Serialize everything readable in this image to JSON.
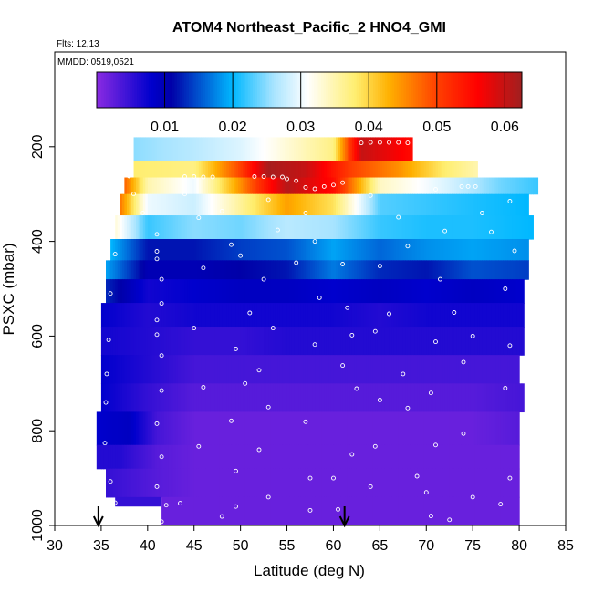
{
  "chart_data": {
    "type": "heatmap",
    "title": "ATOM4 Northeast_Pacific_2 HNO4_GMI",
    "flights_label": "Flts: 12,13",
    "date_label": "MMDD: 0519,0521",
    "xlabel": "Latitude (deg N)",
    "ylabel": "PSXC (mbar)",
    "xlim": [
      30,
      85
    ],
    "ylim": [
      1000,
      0
    ],
    "x_ticks": [
      "30",
      "35",
      "40",
      "45",
      "50",
      "55",
      "60",
      "65",
      "70",
      "75",
      "80",
      "85"
    ],
    "x_tick_values": [
      30,
      35,
      40,
      45,
      50,
      55,
      60,
      65,
      70,
      75,
      80,
      85
    ],
    "y_ticks": [
      "200",
      "400",
      "600",
      "800",
      "1000"
    ],
    "y_tick_values": [
      200,
      400,
      600,
      800,
      1000
    ],
    "colorbar": {
      "range": [
        0,
        0.0625
      ],
      "tick_labels": [
        "0.01",
        "0.02",
        "0.03",
        "0.04",
        "0.05",
        "0.06"
      ],
      "tick_values": [
        0.01,
        0.02,
        0.03,
        0.04,
        0.05,
        0.06
      ]
    },
    "arrows_latitude": [
      34.7,
      61.2
    ],
    "bands": [
      {
        "p_top": 180,
        "p_bottom": 230,
        "x_start": 38.5,
        "x_end": 68.5,
        "lats": [
          38.5,
          45,
          50,
          55,
          60,
          63,
          68.5
        ],
        "values": [
          0.025,
          0.027,
          0.029,
          0.033,
          0.037,
          0.06,
          0.055
        ]
      },
      {
        "p_top": 230,
        "p_bottom": 265,
        "x_start": 38.5,
        "x_end": 75.5,
        "lats": [
          38.5,
          45,
          50,
          53,
          57,
          62,
          67,
          72,
          75.5
        ],
        "values": [
          0.038,
          0.037,
          0.05,
          0.062,
          0.06,
          0.05,
          0.045,
          0.038,
          0.035
        ]
      },
      {
        "p_top": 265,
        "p_bottom": 300,
        "x_start": 37.5,
        "x_end": 82,
        "lats": [
          37.5,
          40,
          45,
          50,
          55,
          60,
          65,
          72,
          78,
          82
        ],
        "values": [
          0.048,
          0.035,
          0.03,
          0.045,
          0.061,
          0.055,
          0.034,
          0.029,
          0.024,
          0.022
        ]
      },
      {
        "p_top": 300,
        "p_bottom": 345,
        "x_start": 37,
        "x_end": 81,
        "lats": [
          37,
          40,
          45,
          50,
          55,
          60,
          65,
          70,
          75,
          81
        ],
        "values": [
          0.047,
          0.03,
          0.028,
          0.036,
          0.044,
          0.039,
          0.023,
          0.022,
          0.021,
          0.02
        ]
      },
      {
        "p_top": 345,
        "p_bottom": 395,
        "x_start": 36.5,
        "x_end": 81.5,
        "lats": [
          36.5,
          40,
          45,
          50,
          55,
          60,
          65,
          70,
          75,
          81.5
        ],
        "values": [
          0.033,
          0.022,
          0.025,
          0.024,
          0.027,
          0.026,
          0.022,
          0.021,
          0.021,
          0.02
        ]
      },
      {
        "p_top": 395,
        "p_bottom": 440,
        "x_start": 36,
        "x_end": 81,
        "lats": [
          36,
          40,
          45,
          50,
          55,
          60,
          65,
          70,
          75,
          81
        ],
        "values": [
          0.02,
          0.012,
          0.012,
          0.014,
          0.015,
          0.019,
          0.016,
          0.018,
          0.019,
          0.018
        ]
      },
      {
        "p_top": 440,
        "p_bottom": 480,
        "x_start": 35.5,
        "x_end": 81,
        "lats": [
          35.5,
          40,
          45,
          50,
          55,
          60,
          65,
          70,
          75,
          81
        ],
        "values": [
          0.019,
          0.01,
          0.01,
          0.011,
          0.012,
          0.017,
          0.013,
          0.012,
          0.015,
          0.014
        ]
      },
      {
        "p_top": 480,
        "p_bottom": 530,
        "x_start": 35.5,
        "x_end": 80.5,
        "lats": [
          35.5,
          40,
          45,
          50,
          55,
          60,
          65,
          70,
          75,
          80.5
        ],
        "values": [
          0.013,
          0.007,
          0.008,
          0.009,
          0.009,
          0.008,
          0.009,
          0.008,
          0.009,
          0.008
        ]
      },
      {
        "p_top": 530,
        "p_bottom": 580,
        "x_start": 35,
        "x_end": 80.5,
        "lats": [
          35,
          40,
          45,
          50,
          55,
          60,
          65,
          70,
          75,
          80.5
        ],
        "values": [
          0.008,
          0.006,
          0.007,
          0.007,
          0.007,
          0.007,
          0.006,
          0.007,
          0.007,
          0.007
        ]
      },
      {
        "p_top": 580,
        "p_bottom": 640,
        "x_start": 35,
        "x_end": 80.5,
        "lats": [
          35,
          40,
          45,
          50,
          55,
          60,
          65,
          70,
          75,
          80.5
        ],
        "values": [
          0.007,
          0.006,
          0.005,
          0.005,
          0.006,
          0.006,
          0.006,
          0.006,
          0.006,
          0.006
        ]
      },
      {
        "p_top": 640,
        "p_bottom": 700,
        "x_start": 35,
        "x_end": 80,
        "lats": [
          35,
          40,
          45,
          50,
          55,
          60,
          65,
          70,
          75,
          80
        ],
        "values": [
          0.008,
          0.006,
          0.004,
          0.004,
          0.004,
          0.004,
          0.004,
          0.004,
          0.004,
          0.004
        ]
      },
      {
        "p_top": 700,
        "p_bottom": 760,
        "x_start": 35,
        "x_end": 80.5,
        "lats": [
          35,
          40,
          45,
          50,
          55,
          60,
          65,
          70,
          75,
          80.5
        ],
        "values": [
          0.008,
          0.005,
          0.003,
          0.003,
          0.003,
          0.003,
          0.003,
          0.003,
          0.003,
          0.004
        ]
      },
      {
        "p_top": 760,
        "p_bottom": 830,
        "x_start": 34.5,
        "x_end": 80,
        "lats": [
          34.5,
          38,
          41,
          45,
          50,
          55,
          60,
          65,
          70,
          75,
          80
        ],
        "values": [
          0.008,
          0.009,
          0.004,
          0.002,
          0.002,
          0.002,
          0.002,
          0.002,
          0.002,
          0.002,
          0.003
        ]
      },
      {
        "p_top": 830,
        "p_bottom": 880,
        "x_start": 34.5,
        "x_end": 80,
        "lats": [
          34.5,
          37,
          41,
          45,
          50,
          55,
          60,
          65,
          70,
          75,
          80
        ],
        "values": [
          0.006,
          0.006,
          0.003,
          0.002,
          0.002,
          0.002,
          0.002,
          0.002,
          0.002,
          0.002,
          0.002
        ]
      },
      {
        "p_top": 880,
        "p_bottom": 940,
        "x_start": 35.5,
        "x_end": 80,
        "lats": [
          35.5,
          41,
          45,
          50,
          55,
          60,
          65,
          70,
          75,
          80
        ],
        "values": [
          0.005,
          0.003,
          0.002,
          0.002,
          0.002,
          0.002,
          0.002,
          0.002,
          0.002,
          0.002
        ]
      },
      {
        "p_top": 940,
        "p_bottom": 1000,
        "x_start": 41.5,
        "x_end": 80,
        "lats": [
          41.5,
          45,
          50,
          55,
          60,
          65,
          70,
          75,
          80
        ],
        "values": [
          0.002,
          0.002,
          0.002,
          0.002,
          0.002,
          0.002,
          0.002,
          0.002,
          0.002
        ]
      }
    ],
    "extra_blocks": [
      {
        "p_top": 940,
        "p_bottom": 960,
        "x_start": 36.5,
        "x_end": 41.5,
        "value": 0.005
      }
    ],
    "markers": [
      [
        63,
        192
      ],
      [
        64,
        191
      ],
      [
        65,
        191
      ],
      [
        66,
        191
      ],
      [
        67,
        191
      ],
      [
        68,
        192
      ],
      [
        44,
        263
      ],
      [
        45,
        263
      ],
      [
        46,
        264
      ],
      [
        47,
        264
      ],
      [
        51.5,
        263
      ],
      [
        52.5,
        263
      ],
      [
        53.5,
        264
      ],
      [
        54.5,
        264
      ],
      [
        55,
        268
      ],
      [
        56,
        272
      ],
      [
        57,
        286
      ],
      [
        58,
        289
      ],
      [
        59,
        284
      ],
      [
        60,
        281
      ],
      [
        61,
        276
      ],
      [
        73.8,
        284
      ],
      [
        74.5,
        284
      ],
      [
        75.3,
        284
      ],
      [
        38,
        262
      ],
      [
        38.5,
        300
      ],
      [
        39.5,
        340
      ],
      [
        41,
        385
      ],
      [
        41,
        421
      ],
      [
        41,
        437
      ],
      [
        41.5,
        480
      ],
      [
        41.5,
        531
      ],
      [
        41,
        566
      ],
      [
        41,
        597
      ],
      [
        41.5,
        641
      ],
      [
        41.5,
        715
      ],
      [
        41,
        785
      ],
      [
        41.5,
        855
      ],
      [
        41,
        918
      ],
      [
        42,
        957
      ],
      [
        41.5,
        992
      ],
      [
        48,
        336
      ],
      [
        49,
        407
      ],
      [
        50,
        430
      ],
      [
        51,
        551
      ],
      [
        49.5,
        627
      ],
      [
        50.5,
        700
      ],
      [
        49,
        779
      ],
      [
        49.5,
        885
      ],
      [
        49.5,
        960
      ],
      [
        48,
        981
      ],
      [
        57,
        340
      ],
      [
        58,
        400
      ],
      [
        56,
        445
      ],
      [
        58.5,
        519
      ],
      [
        58,
        618
      ],
      [
        57,
        781
      ],
      [
        57.5,
        900
      ],
      [
        57.5,
        968
      ],
      [
        61,
        448
      ],
      [
        61.5,
        540
      ],
      [
        62,
        598
      ],
      [
        61,
        662
      ],
      [
        62.5,
        711
      ],
      [
        62,
        850
      ],
      [
        60,
        900
      ],
      [
        60.5,
        966
      ],
      [
        67,
        349
      ],
      [
        68,
        410
      ],
      [
        66,
        553
      ],
      [
        67.5,
        680
      ],
      [
        68,
        752
      ],
      [
        69,
        896
      ],
      [
        70,
        930
      ],
      [
        70.5,
        980
      ],
      [
        76,
        340
      ],
      [
        77,
        380
      ],
      [
        73,
        550
      ],
      [
        75,
        600
      ],
      [
        74,
        655
      ],
      [
        74,
        806
      ],
      [
        75,
        940
      ],
      [
        72.5,
        988
      ],
      [
        79,
        315
      ],
      [
        79.5,
        420
      ],
      [
        78.5,
        500
      ],
      [
        79,
        620
      ],
      [
        78.5,
        710
      ],
      [
        79,
        900
      ],
      [
        78,
        955
      ],
      [
        36,
        367
      ],
      [
        36.5,
        427
      ],
      [
        36,
        510
      ],
      [
        35.8,
        608
      ],
      [
        35.6,
        680
      ],
      [
        35.5,
        740
      ],
      [
        35.4,
        826
      ],
      [
        36,
        907
      ],
      [
        36.5,
        952
      ],
      [
        44,
        300
      ],
      [
        45.5,
        350
      ],
      [
        46,
        456
      ],
      [
        45,
        583
      ],
      [
        46,
        708
      ],
      [
        45.5,
        833
      ],
      [
        43.5,
        953
      ],
      [
        53,
        312
      ],
      [
        54,
        376
      ],
      [
        52.5,
        480
      ],
      [
        53.5,
        583
      ],
      [
        52,
        672
      ],
      [
        53,
        750
      ],
      [
        52,
        840
      ],
      [
        53,
        940
      ],
      [
        64,
        303
      ],
      [
        65,
        452
      ],
      [
        64.5,
        590
      ],
      [
        65,
        735
      ],
      [
        64.5,
        833
      ],
      [
        64,
        918
      ],
      [
        71,
        290
      ],
      [
        72,
        378
      ],
      [
        71.5,
        480
      ],
      [
        71,
        612
      ],
      [
        70.5,
        720
      ],
      [
        71,
        830
      ]
    ]
  }
}
